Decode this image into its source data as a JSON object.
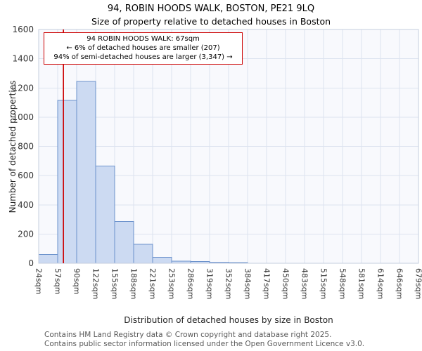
{
  "chart_data": {
    "type": "bar",
    "title": "94, ROBIN HOODS WALK, BOSTON, PE21 9LQ",
    "subtitle": "Size of property relative to detached houses in Boston",
    "xlabel": "Distribution of detached houses by size in Boston",
    "ylabel": "Number of detached properties",
    "ylim": [
      0,
      1600
    ],
    "ytick_step": 200,
    "categories": [
      "24sqm",
      "57sqm",
      "90sqm",
      "122sqm",
      "155sqm",
      "188sqm",
      "221sqm",
      "253sqm",
      "286sqm",
      "319sqm",
      "352sqm",
      "384sqm",
      "417sqm",
      "450sqm",
      "483sqm",
      "515sqm",
      "548sqm",
      "581sqm",
      "614sqm",
      "646sqm",
      "679sqm"
    ],
    "values": [
      60,
      1115,
      1245,
      665,
      285,
      130,
      40,
      15,
      12,
      8,
      5,
      0,
      0,
      0,
      0,
      0,
      0,
      0,
      0,
      0
    ],
    "marker": {
      "value_sqm": 67,
      "color": "#cc0000"
    },
    "annotation": {
      "line1": "94 ROBIN HOODS WALK: 67sqm",
      "line2": "← 6% of detached houses are smaller (207)",
      "line3": "94% of semi-detached houses are larger (3,347) →"
    },
    "colors": {
      "bar_fill": "#ccdaf2",
      "bar_stroke": "#6c92cc",
      "grid": "#dde3f0",
      "plot_bg": "#f8f9fd",
      "border": "#c5cede",
      "tick_text": "#333333"
    },
    "layout": {
      "grid": true,
      "legend": false
    }
  },
  "footer": {
    "line1": "Contains HM Land Registry data © Crown copyright and database right 2025.",
    "line2": "Contains public sector information licensed under the Open Government Licence v3.0."
  }
}
